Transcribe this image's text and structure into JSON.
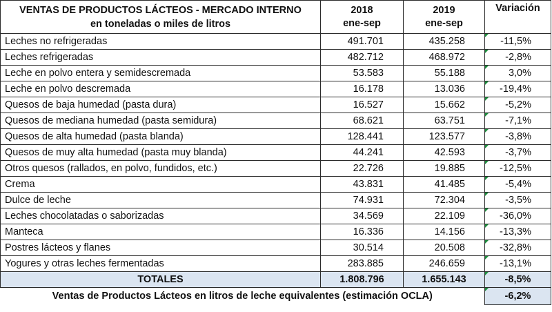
{
  "header": {
    "title_line1": "VENTAS DE PRODUCTOS LÁCTEOS - MERCADO INTERNO",
    "title_line2": "en toneladas o miles de litros",
    "col_2018_year": "2018",
    "col_2018_period": "ene-sep",
    "col_2019_year": "2019",
    "col_2019_period": "ene-sep",
    "col_variation": "Variación"
  },
  "rows": [
    {
      "product": "Leches no refrigeradas",
      "y2018": "491.701",
      "y2019": "435.258",
      "var": "-11,5%"
    },
    {
      "product": "Leches refrigeradas",
      "y2018": "482.712",
      "y2019": "468.972",
      "var": "-2,8%"
    },
    {
      "product": "Leche en polvo entera y semidescremada",
      "y2018": "53.583",
      "y2019": "55.188",
      "var": "3,0%"
    },
    {
      "product": "Leche en polvo descremada",
      "y2018": "16.178",
      "y2019": "13.036",
      "var": "-19,4%"
    },
    {
      "product": "Quesos de baja humedad (pasta dura)",
      "y2018": "16.527",
      "y2019": "15.662",
      "var": "-5,2%"
    },
    {
      "product": "Quesos de mediana humedad (pasta semidura)",
      "y2018": "68.621",
      "y2019": "63.751",
      "var": "-7,1%"
    },
    {
      "product": "Quesos de alta humedad (pasta blanda)",
      "y2018": "128.441",
      "y2019": "123.577",
      "var": "-3,8%"
    },
    {
      "product": "Quesos de muy alta humedad (pasta muy blanda)",
      "y2018": "44.241",
      "y2019": "42.593",
      "var": "-3,7%"
    },
    {
      "product": "Otros quesos (rallados, en polvo, fundidos, etc.)",
      "y2018": "22.726",
      "y2019": "19.885",
      "var": "-12,5%"
    },
    {
      "product": "Crema",
      "y2018": "43.831",
      "y2019": "41.485",
      "var": "-5,4%"
    },
    {
      "product": "Dulce de leche",
      "y2018": "74.931",
      "y2019": "72.304",
      "var": "-3,5%"
    },
    {
      "product": "Leches chocolatadas o saborizadas",
      "y2018": "34.569",
      "y2019": "22.109",
      "var": "-36,0%"
    },
    {
      "product": "Manteca",
      "y2018": "16.336",
      "y2019": "14.156",
      "var": "-13,3%"
    },
    {
      "product": "Postres lácteos y flanes",
      "y2018": "30.514",
      "y2019": "20.508",
      "var": "-32,8%"
    },
    {
      "product": "Yogures y otras leches fermentadas",
      "y2018": "283.885",
      "y2019": "246.659",
      "var": "-13,1%"
    }
  ],
  "totals": {
    "label": "TOTALES",
    "y2018": "1.808.796",
    "y2019": "1.655.143",
    "var": "-8,5%"
  },
  "milk_equivalent": {
    "label": "Ventas de Productos Lácteos en litros de leche equivalentes (estimación OCLA)",
    "var": "-6,2%"
  },
  "colors": {
    "totals_background": "#dbe5f1",
    "error_indicator": "#1a8a3a"
  }
}
